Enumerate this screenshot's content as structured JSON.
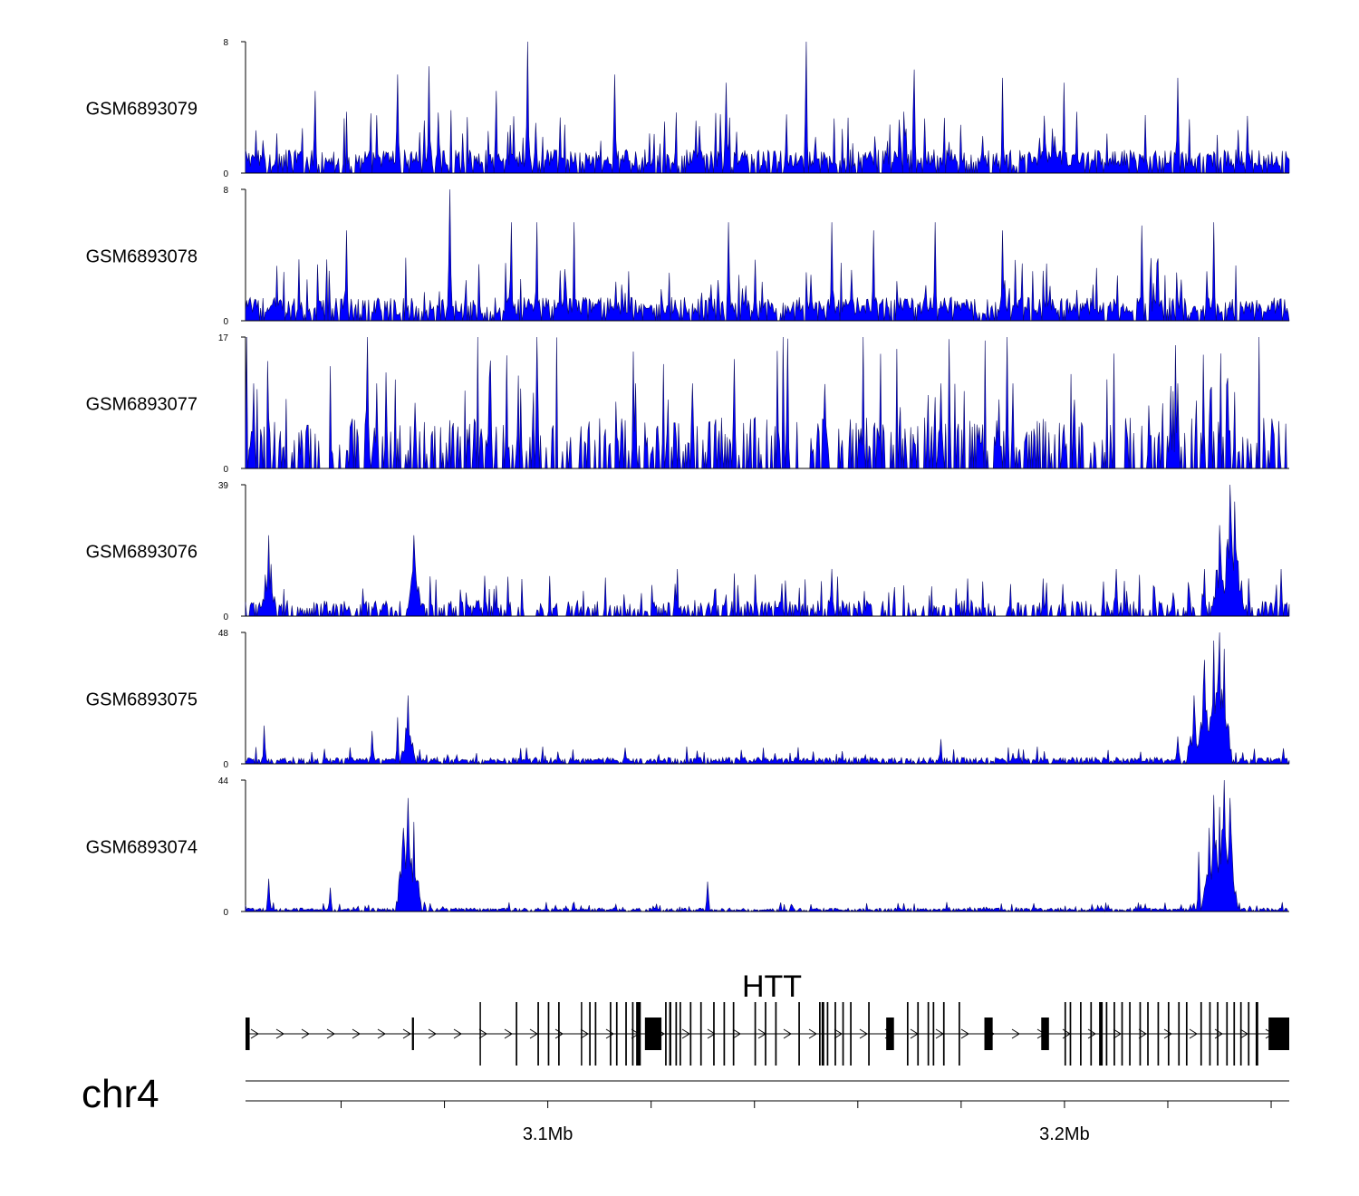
{
  "chart_data": {
    "type": "area",
    "title": "",
    "chromosome": "chr4",
    "xlabel": "",
    "ylabel": "",
    "xlim_mb": [
      3.042,
      3.244
    ],
    "x_tick_labels": [
      {
        "position_mb": 3.1,
        "label": "3.1Mb"
      },
      {
        "position_mb": 3.2,
        "label": "3.2Mb"
      }
    ],
    "x_minor_ticks_mb": [
      3.06,
      3.08,
      3.1,
      3.12,
      3.14,
      3.16,
      3.18,
      3.2,
      3.22,
      3.24
    ],
    "series_color": "#0000ff",
    "series_outline_color": "#0a0a66",
    "tracks": [
      {
        "name": "GSM6893079",
        "ylim": [
          0,
          8
        ],
        "baseline": 1.2,
        "peaks": [
          [
            3.0775,
            6.5
          ],
          [
            3.0555,
            5
          ],
          [
            3.0715,
            6
          ],
          [
            3.1135,
            6
          ],
          [
            3.135,
            5.5
          ],
          [
            3.1505,
            8
          ],
          [
            3.1715,
            6.3
          ],
          [
            3.1885,
            5.8
          ],
          [
            3.2005,
            5.5
          ],
          [
            3.2225,
            5.8
          ],
          [
            3.0965,
            8
          ],
          [
            3.0905,
            5
          ]
        ]
      },
      {
        "name": "GSM6893078",
        "ylim": [
          0,
          8
        ],
        "baseline": 1.2,
        "peaks": [
          [
            3.0815,
            8
          ],
          [
            3.0935,
            6
          ],
          [
            3.0985,
            6
          ],
          [
            3.1055,
            6
          ],
          [
            3.1355,
            6
          ],
          [
            3.1555,
            6
          ],
          [
            3.1635,
            5.5
          ],
          [
            3.1755,
            6
          ],
          [
            3.1885,
            5.5
          ],
          [
            3.2155,
            5.8
          ],
          [
            3.2295,
            6
          ],
          [
            3.0615,
            5.5
          ]
        ]
      },
      {
        "name": "GSM6893077",
        "ylim": [
          0,
          17
        ],
        "baseline": 5.5,
        "peaks": [
          [
            3.0655,
            17
          ],
          [
            3.0985,
            17
          ],
          [
            3.1615,
            17
          ],
          [
            3.1895,
            17
          ],
          [
            3.0675,
            11
          ],
          [
            3.1175,
            11
          ],
          [
            3.1285,
            11
          ],
          [
            3.1765,
            11
          ],
          [
            3.1905,
            11
          ],
          [
            3.2225,
            11
          ],
          [
            3.0435,
            11
          ],
          [
            3.0925,
            11
          ]
        ]
      },
      {
        "name": "GSM6893076",
        "ylim": [
          0,
          39
        ],
        "baseline": 4,
        "peaks": [
          [
            3.0465,
            24
          ],
          [
            3.0745,
            24
          ],
          [
            3.2325,
            39
          ],
          [
            3.2335,
            34
          ],
          [
            3.2305,
            27
          ],
          [
            3.2275,
            14
          ],
          [
            3.1555,
            14
          ],
          [
            3.1255,
            14
          ],
          [
            3.2105,
            14
          ],
          [
            3.2425,
            14
          ]
        ]
      },
      {
        "name": "GSM6893075",
        "ylim": [
          0,
          48
        ],
        "baseline": 2,
        "peaks": [
          [
            3.0735,
            25
          ],
          [
            3.0715,
            17
          ],
          [
            3.0455,
            14
          ],
          [
            3.0665,
            12
          ],
          [
            3.2305,
            48
          ],
          [
            3.2295,
            45
          ],
          [
            3.2315,
            42
          ],
          [
            3.2275,
            38
          ],
          [
            3.2255,
            25
          ],
          [
            3.2225,
            10
          ],
          [
            3.1765,
            9
          ]
        ]
      },
      {
        "name": "GSM6893074",
        "ylim": [
          0,
          44
        ],
        "baseline": 1,
        "peaks": [
          [
            3.0735,
            38
          ],
          [
            3.0745,
            30
          ],
          [
            3.0725,
            28
          ],
          [
            3.0465,
            11
          ],
          [
            3.1315,
            10
          ],
          [
            3.2295,
            39
          ],
          [
            3.2305,
            35
          ],
          [
            3.2315,
            44
          ],
          [
            3.2325,
            38
          ],
          [
            3.2285,
            28
          ],
          [
            3.2265,
            20
          ],
          [
            3.0585,
            8
          ]
        ]
      }
    ],
    "gene": {
      "name": "HTT",
      "start_mb": 3.042,
      "end_mb": 3.244,
      "strand": "+",
      "exons_mb": [
        [
          3.042,
          3.0428
        ],
        [
          3.0742,
          3.0746
        ],
        [
          3.0873,
          3.0875
        ],
        [
          3.0943,
          3.0946
        ],
        [
          3.0985,
          3.0988
        ],
        [
          3.1005,
          3.1008
        ],
        [
          3.1025,
          3.1028
        ],
        [
          3.1069,
          3.1071
        ],
        [
          3.1085,
          3.1088
        ],
        [
          3.1096,
          3.1099
        ],
        [
          3.1125,
          3.1128
        ],
        [
          3.1137,
          3.114
        ],
        [
          3.1155,
          3.1158
        ],
        [
          3.1168,
          3.1171
        ],
        [
          3.1176,
          3.1185
        ],
        [
          3.1193,
          3.1225
        ],
        [
          3.1232,
          3.1235
        ],
        [
          3.124,
          3.1244
        ],
        [
          3.1252,
          3.1255
        ],
        [
          3.126,
          3.1263
        ],
        [
          3.128,
          3.1283
        ],
        [
          3.13,
          3.1303
        ],
        [
          3.1325,
          3.1328
        ],
        [
          3.1345,
          3.1348
        ],
        [
          3.1363,
          3.1366
        ],
        [
          3.1405,
          3.1408
        ],
        [
          3.1425,
          3.1428
        ],
        [
          3.1445,
          3.1448
        ],
        [
          3.149,
          3.1493
        ],
        [
          3.153,
          3.1533
        ],
        [
          3.1535,
          3.154
        ],
        [
          3.1545,
          3.1548
        ],
        [
          3.156,
          3.1563
        ],
        [
          3.1575,
          3.1578
        ],
        [
          3.159,
          3.1593
        ],
        [
          3.1625,
          3.1628
        ],
        [
          3.166,
          3.1675
        ],
        [
          3.17,
          3.1703
        ],
        [
          3.172,
          3.1723
        ],
        [
          3.174,
          3.1743
        ],
        [
          3.175,
          3.1753
        ],
        [
          3.177,
          3.1773
        ],
        [
          3.18,
          3.1803
        ],
        [
          3.185,
          3.1866
        ],
        [
          3.196,
          3.1975
        ],
        [
          3.2005,
          3.2008
        ],
        [
          3.2015,
          3.2018
        ],
        [
          3.2035,
          3.2038
        ],
        [
          3.2055,
          3.2058
        ],
        [
          3.2072,
          3.2079
        ],
        [
          3.2085,
          3.2088
        ],
        [
          3.21,
          3.2103
        ],
        [
          3.2115,
          3.2118
        ],
        [
          3.213,
          3.2133
        ],
        [
          3.215,
          3.2153
        ],
        [
          3.2165,
          3.2168
        ],
        [
          3.2185,
          3.2188
        ],
        [
          3.2205,
          3.2208
        ],
        [
          3.2225,
          3.2228
        ],
        [
          3.224,
          3.2243
        ],
        [
          3.2268,
          3.2271
        ],
        [
          3.2285,
          3.2288
        ],
        [
          3.23,
          3.2303
        ],
        [
          3.2318,
          3.2321
        ],
        [
          3.2332,
          3.2335
        ],
        [
          3.2345,
          3.2348
        ],
        [
          3.236,
          3.2363
        ],
        [
          3.2375,
          3.238
        ],
        [
          3.24,
          3.244
        ]
      ]
    }
  }
}
